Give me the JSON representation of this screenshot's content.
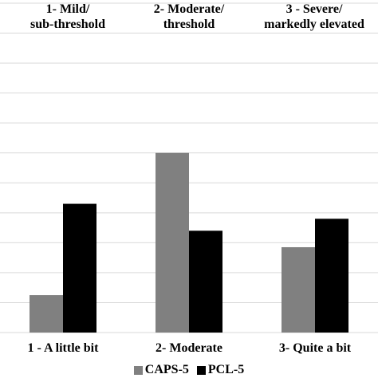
{
  "chart_data": {
    "type": "bar",
    "top_labels": [
      [
        "1- Mild/",
        "sub-threshold"
      ],
      [
        "2- Moderate/",
        "threshold"
      ],
      [
        "3 - Severe/",
        "markedly elevated"
      ]
    ],
    "categories": [
      "1 - A little bit",
      "2- Moderate",
      "3- Quite a bit"
    ],
    "series": [
      {
        "name": "CAPS-5",
        "color": "#808080",
        "values": [
          12.5,
          60,
          28.5
        ]
      },
      {
        "name": "PCL-5",
        "color": "#000000",
        "values": [
          43,
          34,
          38
        ]
      }
    ],
    "ylim": [
      0,
      110
    ],
    "y_gridline_step": 10,
    "grid": true,
    "legend_position": "bottom"
  }
}
